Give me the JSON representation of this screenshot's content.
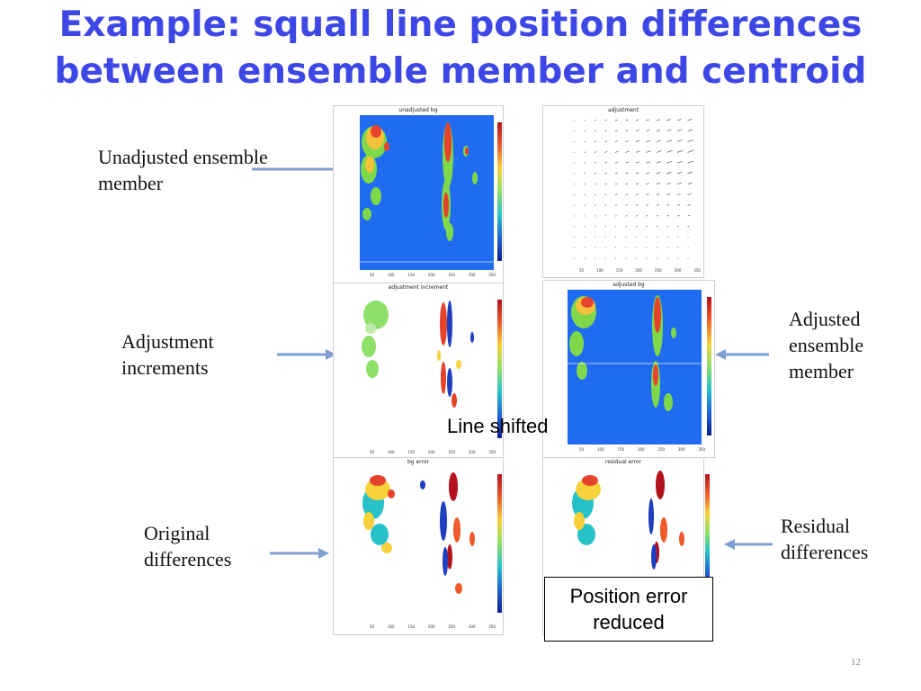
{
  "title": "Example: squall line position differences between ensemble member and centroid",
  "labels": {
    "unadjusted": "Unadjusted ensemble\nmember",
    "increments": "Adjustment\nincrements",
    "adjusted": "Adjusted\nensemble\nmember",
    "original": "Original\ndifferences",
    "residual": "Residual\ndifferences"
  },
  "panels": {
    "unadjusted_bg": "unadjusted bg",
    "adjustment": "adjustment",
    "adjustment_increment": "adjustment increment",
    "adjusted_bg": "adjusted bg",
    "bg_error": "bg error",
    "residual_error": "residual error"
  },
  "colorbar_ticks_a": [
    "40",
    "20",
    "0",
    "-20",
    "-40"
  ],
  "colorbar_ticks_b": [
    "50",
    "0",
    "-50"
  ],
  "x_ticks": [
    "50",
    "100",
    "150",
    "200",
    "250",
    "300",
    "350"
  ],
  "y_ticks": [
    "400",
    "300",
    "200",
    "100"
  ],
  "annotations": {
    "line_shifted": "Line shifted",
    "position_error": "Position error\nreduced"
  },
  "page_number": "12",
  "colors": {
    "title": "#3d47e6",
    "arrow": "#7f9fd0",
    "field_blue": "#1f6cf0"
  }
}
